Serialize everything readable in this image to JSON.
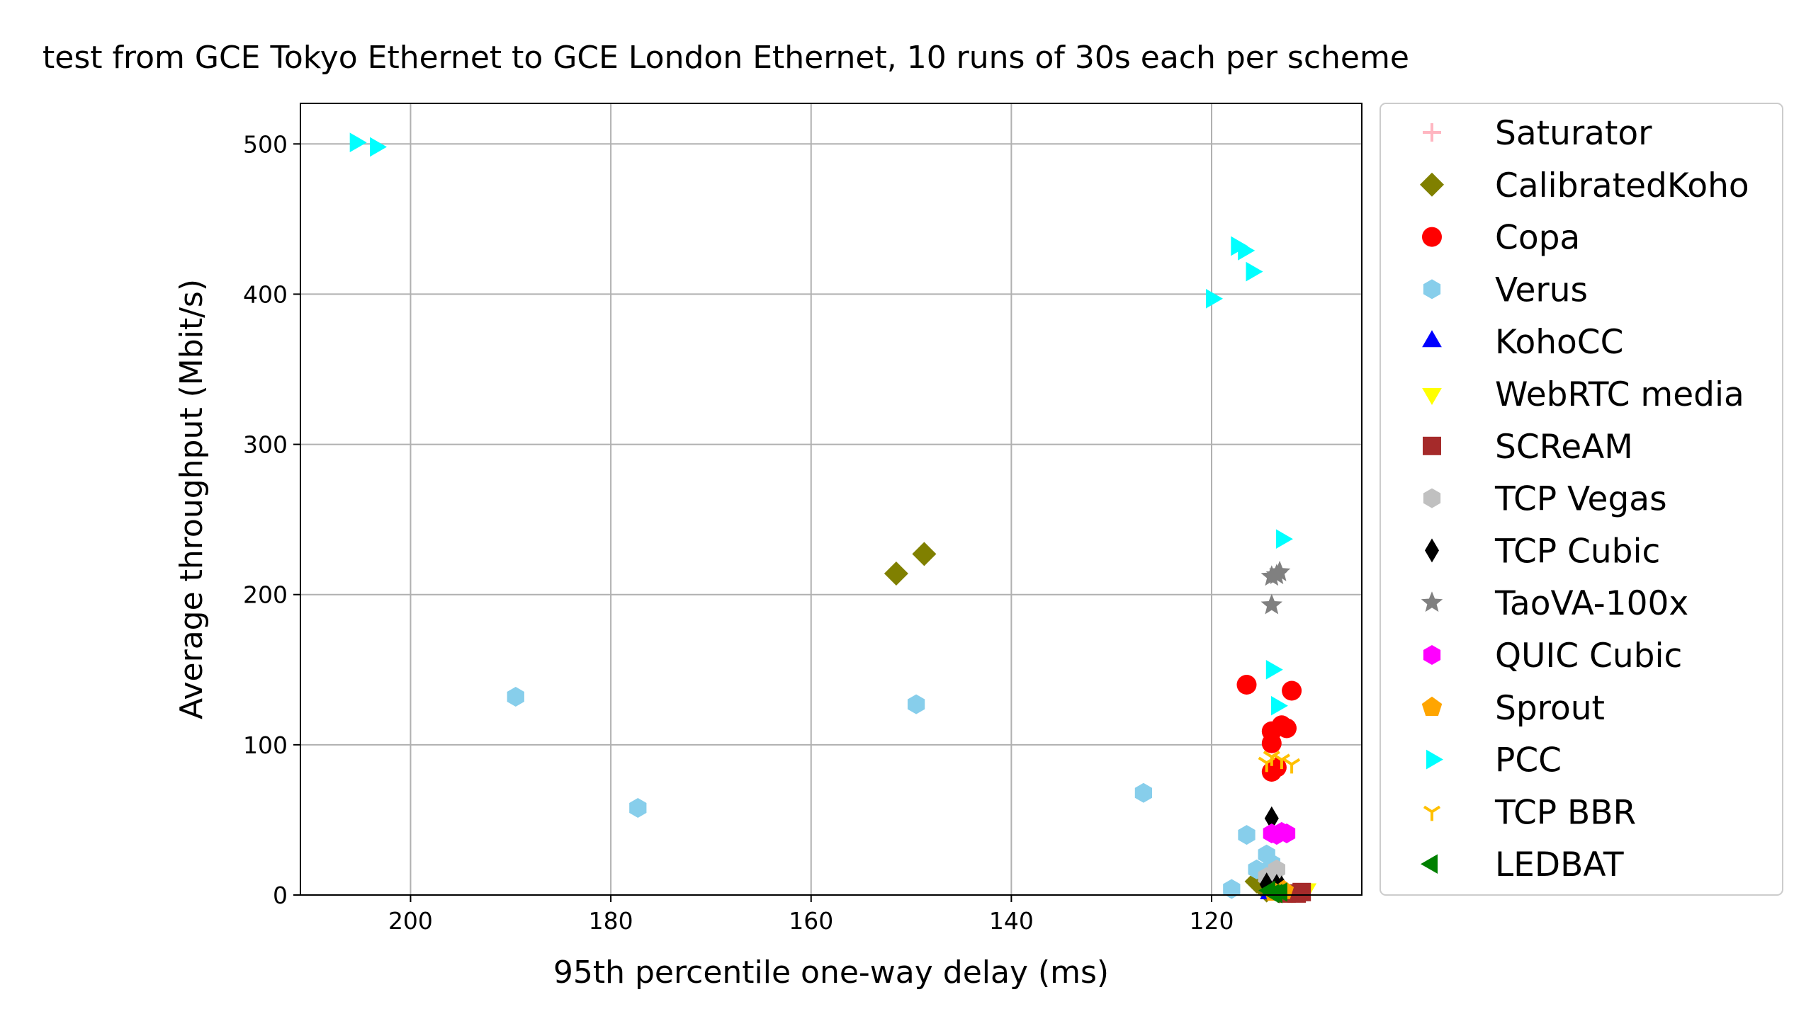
{
  "chart_data": {
    "type": "scatter",
    "title": "test from GCE Tokyo Ethernet to GCE London Ethernet, 10 runs of 30s each per scheme",
    "xlabel": "95th percentile one-way delay (ms)",
    "ylabel": "Average throughput (Mbit/s)",
    "xlim": [
      211,
      105
    ],
    "ylim": [
      0,
      527
    ],
    "x_inverted": true,
    "grid": true,
    "legend_position": "outside-right",
    "xticks": [
      200,
      180,
      160,
      140,
      120
    ],
    "yticks": [
      0,
      100,
      200,
      300,
      400,
      500
    ],
    "series": [
      {
        "name": "Saturator",
        "marker": "plus",
        "color": "#ffb6c1",
        "points": []
      },
      {
        "name": "CalibratedKoho",
        "marker": "diamond",
        "color": "#808000",
        "points": [
          [
            151.5,
            214
          ],
          [
            148.7,
            227
          ],
          [
            115.5,
            9
          ],
          [
            114.5,
            3
          ],
          [
            113.5,
            5
          ]
        ]
      },
      {
        "name": "Copa",
        "marker": "circle",
        "color": "#ff0000",
        "points": [
          [
            116.5,
            140
          ],
          [
            112,
            136
          ],
          [
            114,
            109
          ],
          [
            113,
            113
          ],
          [
            112.5,
            111
          ],
          [
            114,
            101
          ],
          [
            113.5,
            85
          ],
          [
            114,
            82
          ]
        ]
      },
      {
        "name": "Verus",
        "marker": "hexagon",
        "color": "#87ceeb",
        "points": [
          [
            189.5,
            132
          ],
          [
            177.3,
            58
          ],
          [
            149.5,
            127
          ],
          [
            126.8,
            68
          ],
          [
            116.5,
            40
          ],
          [
            115.5,
            17
          ],
          [
            114.5,
            27
          ],
          [
            118,
            4
          ],
          [
            114,
            21
          ]
        ]
      },
      {
        "name": "KohoCC",
        "marker": "triangle-up",
        "color": "#0000ff",
        "points": [
          [
            114.2,
            1
          ],
          [
            113.6,
            2
          ]
        ]
      },
      {
        "name": "WebRTC media",
        "marker": "triangle-down",
        "color": "#ffff00",
        "points": [
          [
            111,
            3
          ],
          [
            112,
            2
          ],
          [
            110.5,
            4
          ]
        ]
      },
      {
        "name": "SCReAM",
        "marker": "square",
        "color": "#a52a2a",
        "points": [
          [
            111.5,
            1
          ],
          [
            112.5,
            1
          ],
          [
            111,
            2
          ]
        ]
      },
      {
        "name": "TCP Vegas",
        "marker": "hexagon",
        "color": "#c0c0c0",
        "points": [
          [
            113.5,
            17
          ],
          [
            114.5,
            12
          ]
        ]
      },
      {
        "name": "TCP Cubic",
        "marker": "diamond-thin",
        "color": "#000000",
        "points": [
          [
            114,
            51
          ],
          [
            114.5,
            7
          ],
          [
            113.5,
            6
          ],
          [
            113,
            5
          ]
        ]
      },
      {
        "name": "TaoVA-100x",
        "marker": "star",
        "color": "#808080",
        "points": [
          [
            114,
            193
          ],
          [
            113.5,
            213
          ],
          [
            113.2,
            215
          ],
          [
            114,
            212
          ]
        ]
      },
      {
        "name": "QUIC Cubic",
        "marker": "hexagon",
        "color": "#ff00ff",
        "points": [
          [
            114,
            41
          ],
          [
            113,
            42
          ],
          [
            112.5,
            41
          ],
          [
            113.5,
            40
          ]
        ]
      },
      {
        "name": "Sprout",
        "marker": "pentagon",
        "color": "#ffa500",
        "points": [
          [
            112.8,
            3
          ],
          [
            113.8,
            2
          ]
        ]
      },
      {
        "name": "PCC",
        "marker": "triangle-right",
        "color": "#00ffff",
        "points": [
          [
            205.5,
            501
          ],
          [
            203.5,
            498
          ],
          [
            117.5,
            432
          ],
          [
            116.8,
            429
          ],
          [
            116,
            415
          ],
          [
            120,
            397
          ],
          [
            113,
            237
          ],
          [
            114,
            150
          ],
          [
            113.5,
            126
          ]
        ]
      },
      {
        "name": "TCP BBR",
        "marker": "tri-down",
        "color": "#ffc000",
        "points": [
          [
            114,
            92
          ],
          [
            113,
            90
          ],
          [
            112,
            87
          ],
          [
            114.5,
            88
          ]
        ]
      },
      {
        "name": "LEDBAT",
        "marker": "triangle-left",
        "color": "#008000",
        "points": [
          [
            113.8,
            1
          ],
          [
            113,
            2
          ],
          [
            114.2,
            3
          ],
          [
            113.5,
            1
          ]
        ]
      }
    ]
  }
}
